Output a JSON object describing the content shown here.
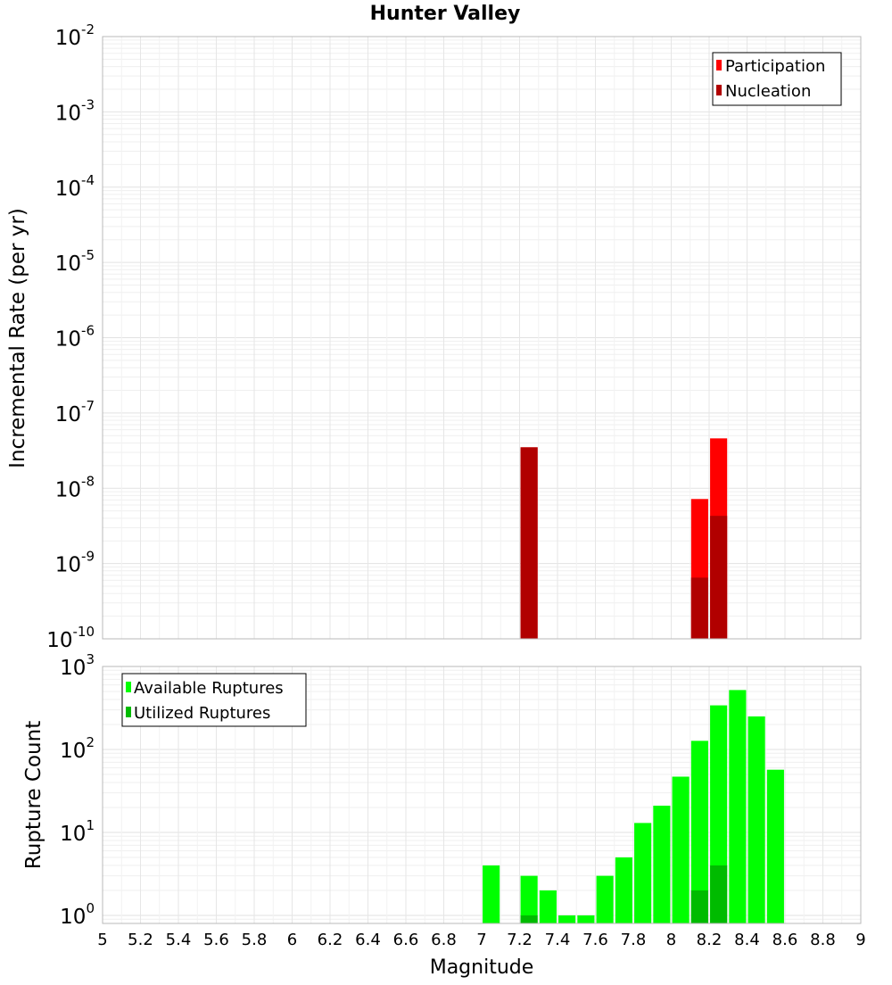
{
  "chart_data": [
    {
      "type": "bar",
      "title": "Hunter Valley",
      "xlabel": "Magnitude",
      "ylabel": "Incremental Rate (per yr)",
      "yscale": "log",
      "xlim": [
        5,
        9
      ],
      "ylim": [
        1e-10,
        0.01
      ],
      "yticks": [
        {
          "base": "10",
          "exp": "-2",
          "value": 0.01
        },
        {
          "base": "10",
          "exp": "-3",
          "value": 0.001
        },
        {
          "base": "10",
          "exp": "-4",
          "value": 0.0001
        },
        {
          "base": "10",
          "exp": "-5",
          "value": 1e-05
        },
        {
          "base": "10",
          "exp": "-6",
          "value": 1e-06
        },
        {
          "base": "10",
          "exp": "-7",
          "value": 1e-07
        },
        {
          "base": "10",
          "exp": "-8",
          "value": 1e-08
        },
        {
          "base": "10",
          "exp": "-9",
          "value": 1e-09
        },
        {
          "base": "10",
          "exp": "-10",
          "value": 1e-10
        }
      ],
      "grid": true,
      "legend_position": "top-right",
      "bar_width": 0.09,
      "series": [
        {
          "name": "Participation",
          "color": "#ff0000",
          "x": [
            7.25,
            8.15,
            8.25
          ],
          "values": [
            3.5e-08,
            7.2e-09,
            4.6e-08
          ]
        },
        {
          "name": "Nucleation",
          "color": "#b10000",
          "x": [
            7.25,
            8.15,
            8.25
          ],
          "values": [
            3.5e-08,
            6.5e-10,
            4.3e-09
          ]
        }
      ]
    },
    {
      "type": "bar",
      "xlabel": "Magnitude",
      "ylabel": "Rupture Count",
      "yscale": "log",
      "xlim": [
        5,
        9
      ],
      "ylim": [
        0.8,
        1000
      ],
      "yticks": [
        {
          "base": "10",
          "exp": "3",
          "value": 1000
        },
        {
          "base": "10",
          "exp": "2",
          "value": 100
        },
        {
          "base": "10",
          "exp": "1",
          "value": 10
        },
        {
          "base": "10",
          "exp": "0",
          "value": 1
        }
      ],
      "xticks": [
        "5",
        "5.2",
        "5.4",
        "5.6",
        "5.8",
        "6",
        "6.2",
        "6.4",
        "6.6",
        "6.8",
        "7",
        "7.2",
        "7.4",
        "7.6",
        "7.8",
        "8",
        "8.2",
        "8.4",
        "8.6",
        "8.8",
        "9"
      ],
      "grid": true,
      "legend_position": "top-left",
      "bar_width": 0.09,
      "series": [
        {
          "name": "Available Ruptures",
          "color": "#00ff00",
          "x": [
            7.05,
            7.25,
            7.35,
            7.45,
            7.55,
            7.65,
            7.75,
            7.85,
            7.95,
            8.05,
            8.15,
            8.25,
            8.35,
            8.45,
            8.55
          ],
          "values": [
            4,
            3,
            2,
            1,
            1,
            3,
            5,
            13,
            21,
            47,
            127,
            340,
            520,
            250,
            57
          ]
        },
        {
          "name": "Utilized Ruptures",
          "color": "#00bb00",
          "x": [
            7.25,
            8.15,
            8.25
          ],
          "values": [
            1,
            2,
            4
          ]
        }
      ]
    }
  ]
}
